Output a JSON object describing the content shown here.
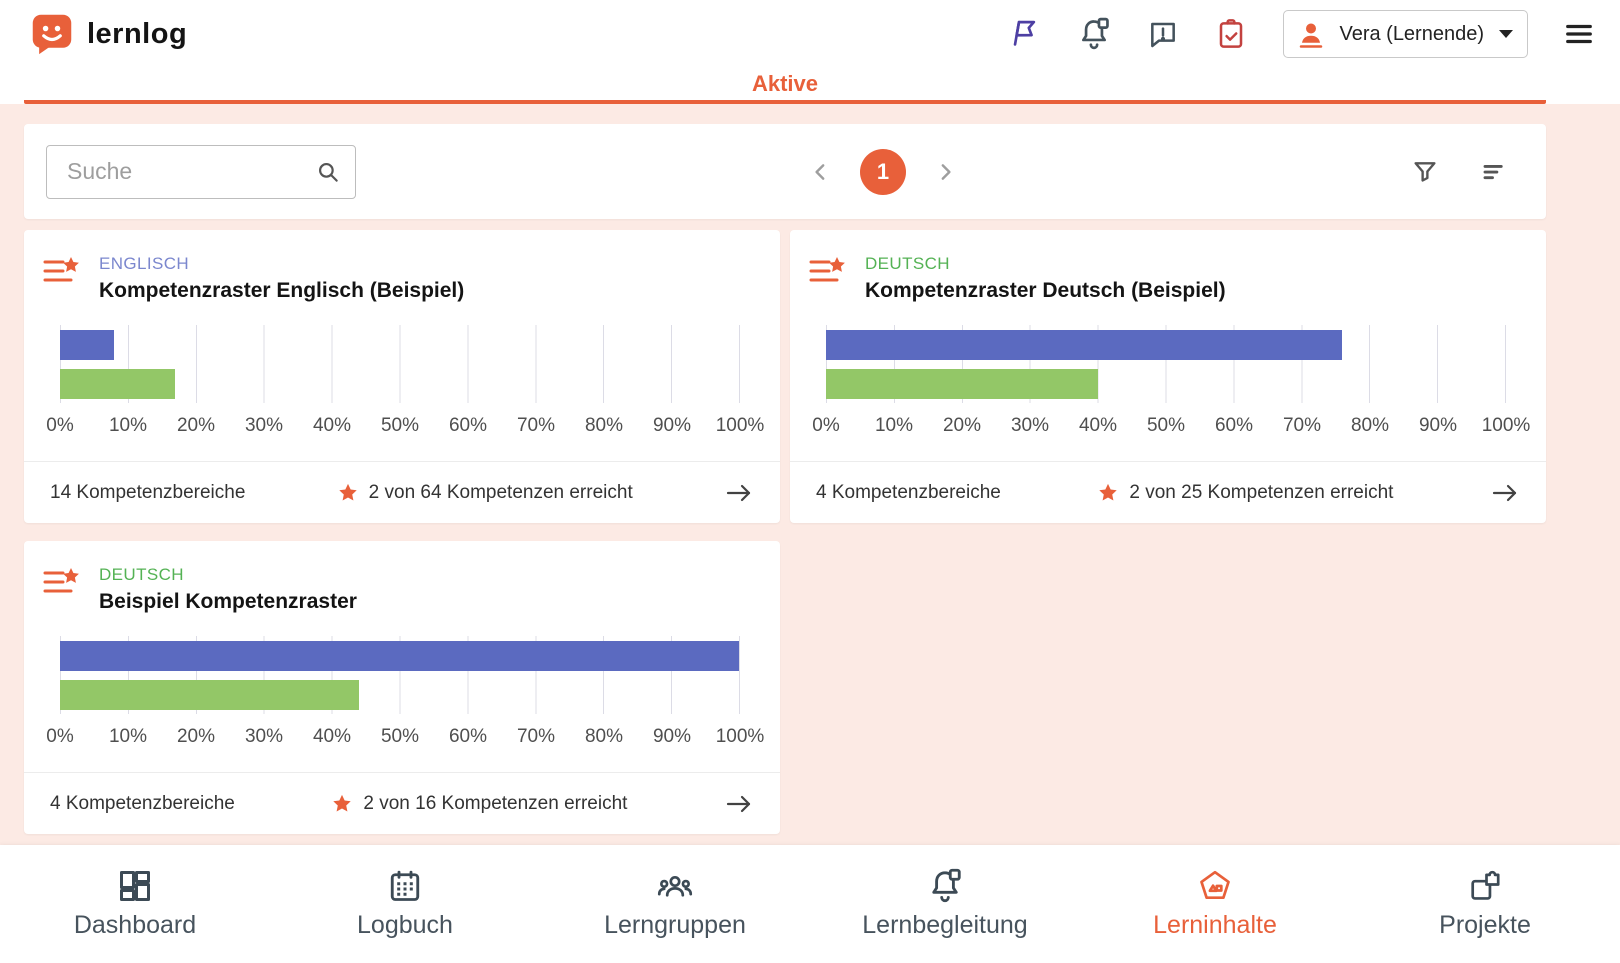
{
  "app": {
    "name": "lernlog"
  },
  "header": {
    "user_label": "Vera (Lernende)",
    "icons": [
      "flag-icon",
      "learning-support-bell-icon",
      "feedback-icon",
      "tasks-check-icon",
      "menu-icon",
      "user-avatar-icon"
    ]
  },
  "tabs": {
    "active": "Aktive"
  },
  "toolbar": {
    "search_placeholder": "Suche",
    "page": "1",
    "icons": [
      "search-icon",
      "filter-icon",
      "sort-icon",
      "chevron-left-icon",
      "chevron-right-icon"
    ]
  },
  "axis": {
    "ticks": [
      "0%",
      "10%",
      "20%",
      "30%",
      "40%",
      "50%",
      "60%",
      "70%",
      "80%",
      "90%",
      "100%"
    ]
  },
  "colors": {
    "accent": "#e8603a",
    "blue_bar": "#5b6ac0",
    "green_bar": "#93c767",
    "english_label": "#7b87ce",
    "deutsch_label": "#54b254",
    "background": "#fceae4"
  },
  "cards": [
    {
      "subject": "ENGLISCH",
      "subject_color": "#7b87ce",
      "title": "Kompetenzraster Englisch (Beispiel)",
      "areas": "14 Kompetenzbereiche",
      "achieved": "2 von 64 Kompetenzen erreicht",
      "chart": {
        "type": "bar",
        "xlim_pct": [
          0,
          100
        ],
        "blue_pct": 8,
        "green_pct": 17
      }
    },
    {
      "subject": "DEUTSCH",
      "subject_color": "#54b254",
      "title": "Kompetenzraster Deutsch (Beispiel)",
      "areas": "4 Kompetenzbereiche",
      "achieved": "2 von 25 Kompetenzen erreicht",
      "chart": {
        "type": "bar",
        "xlim_pct": [
          0,
          100
        ],
        "blue_pct": 76,
        "green_pct": 40
      }
    },
    {
      "subject": "DEUTSCH",
      "subject_color": "#54b254",
      "title": "Beispiel Kompetenzraster",
      "areas": "4 Kompetenzbereiche",
      "achieved": "2 von 16 Kompetenzen erreicht",
      "chart": {
        "type": "bar",
        "xlim_pct": [
          0,
          100
        ],
        "blue_pct": 100,
        "green_pct": 44
      }
    }
  ],
  "nav": {
    "items": [
      {
        "label": "Dashboard"
      },
      {
        "label": "Logbuch"
      },
      {
        "label": "Lerngruppen"
      },
      {
        "label": "Lernbegleitung"
      },
      {
        "label": "Lerninhalte",
        "active": true
      },
      {
        "label": "Projekte"
      }
    ]
  }
}
